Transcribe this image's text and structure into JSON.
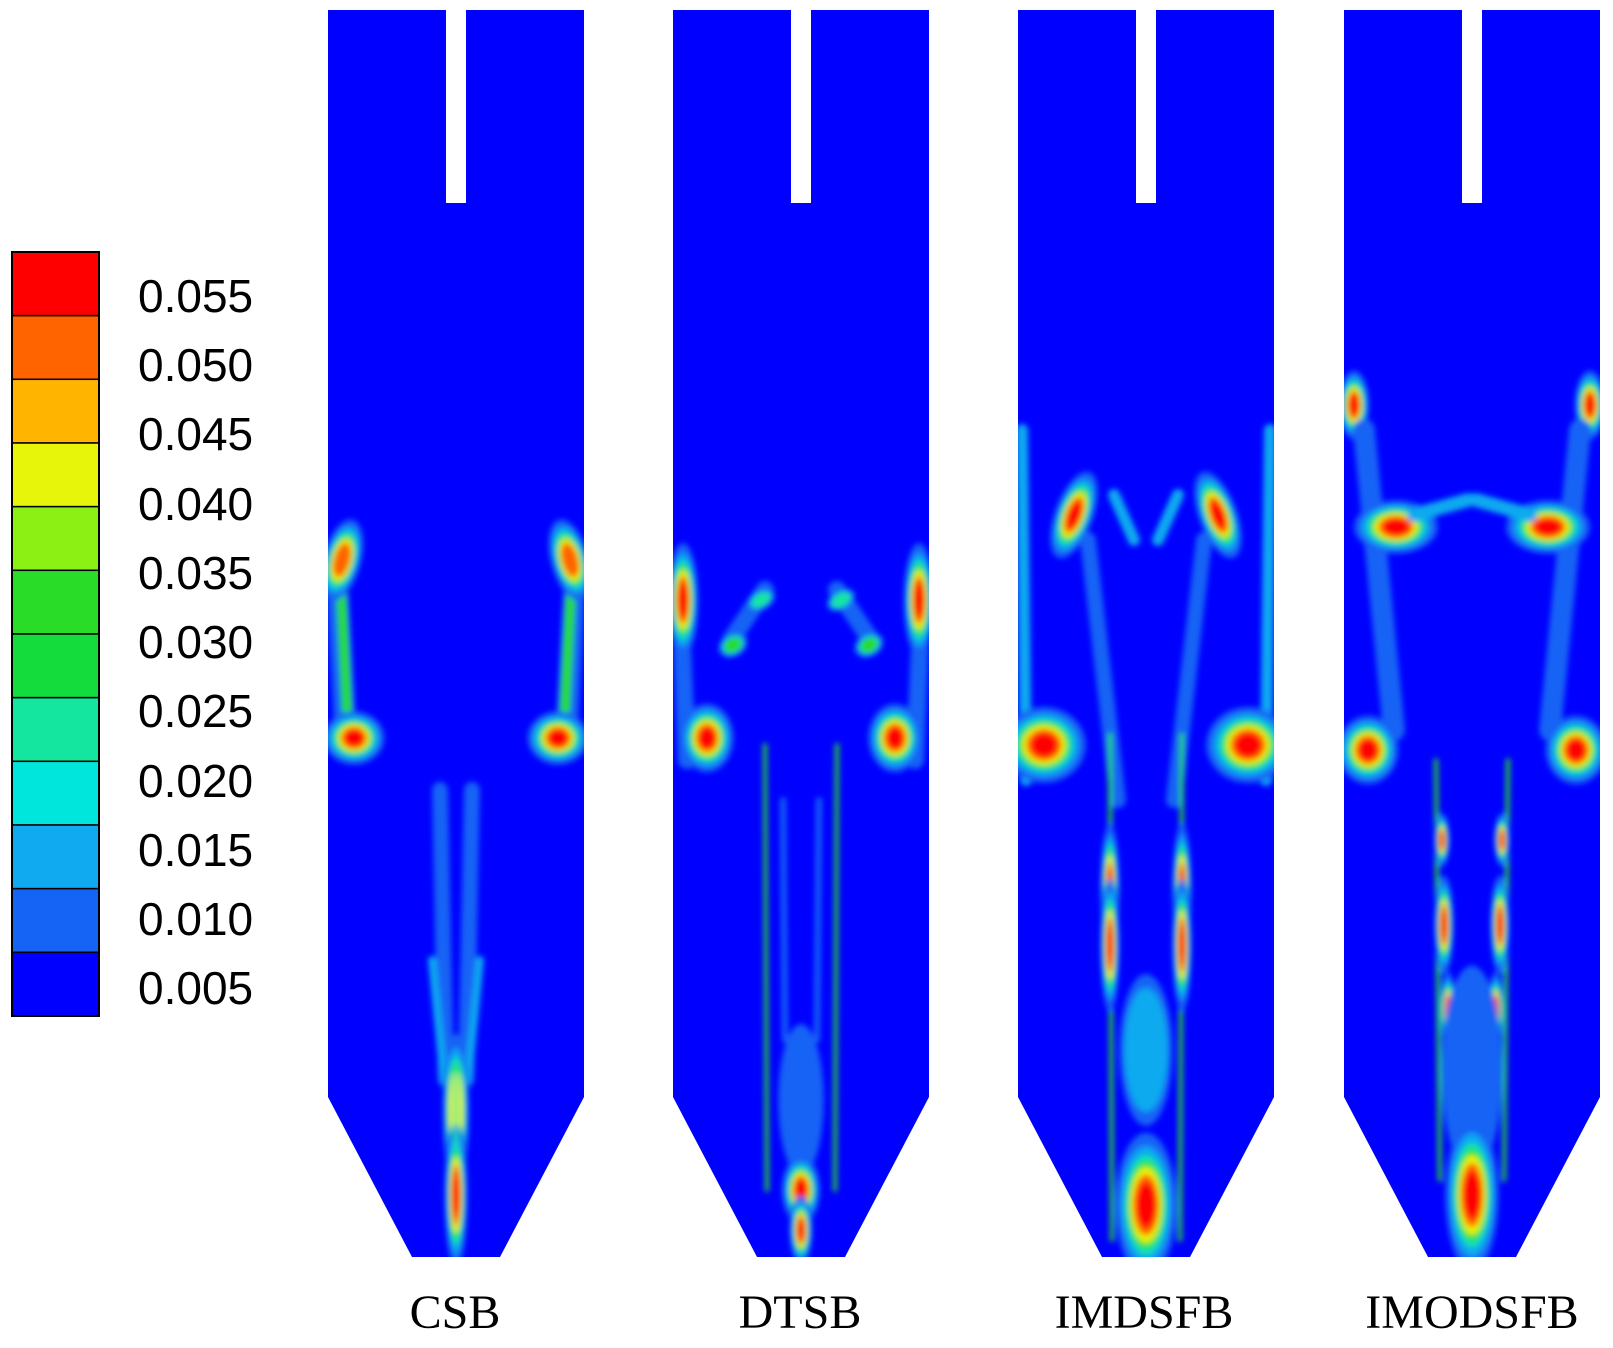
{
  "legend": {
    "colors": [
      "#0000ff",
      "#1664f5",
      "#0faaf0",
      "#00e6dc",
      "#14e6a0",
      "#14dc3c",
      "#28dc28",
      "#8cf014",
      "#e6f50a",
      "#ffb400",
      "#ff6400",
      "#ff0000"
    ],
    "labels": [
      "0.005",
      "0.010",
      "0.015",
      "0.020",
      "0.025",
      "0.030",
      "0.035",
      "0.040",
      "0.045",
      "0.050",
      "0.055"
    ]
  },
  "panels": [
    {
      "label": "CSB",
      "variant": "csb"
    },
    {
      "label": "DTSB",
      "variant": "dtsb"
    },
    {
      "label": "IMDSFB",
      "variant": "imdsfb"
    },
    {
      "label": "IMODSFB",
      "variant": "imodsfb"
    }
  ]
}
